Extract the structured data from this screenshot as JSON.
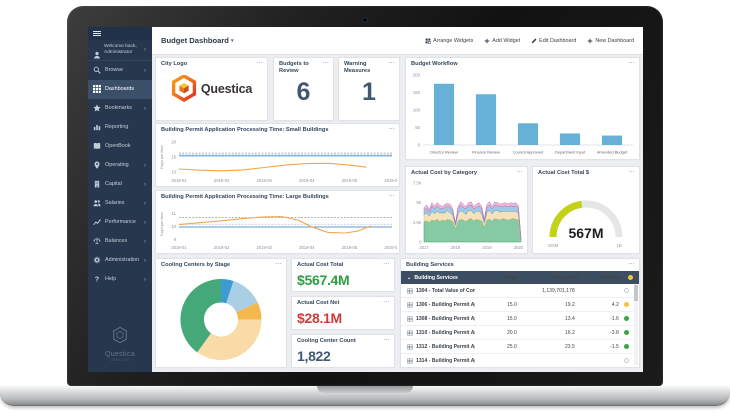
{
  "app": {
    "title": "Budget Dashboard",
    "actions": [
      {
        "label": "Arrange Widgets",
        "icon": "arrange-icon"
      },
      {
        "label": "Add Widget",
        "icon": "plus-icon"
      },
      {
        "label": "Edit Dashboard",
        "icon": "pencil-icon"
      },
      {
        "label": "New Dashboard",
        "icon": "plus-icon"
      }
    ]
  },
  "sidebar": {
    "welcome_line1": "Welcome back,",
    "welcome_line2": "Administrator",
    "items": [
      {
        "id": "browse",
        "label": "Browse",
        "icon": "search-icon",
        "chevron": true,
        "selected": false
      },
      {
        "id": "dashboards",
        "label": "Dashboards",
        "icon": "grid-icon",
        "chevron": false,
        "selected": true
      },
      {
        "id": "bookmarks",
        "label": "Bookmarks",
        "icon": "star-icon",
        "chevron": true,
        "selected": false
      },
      {
        "id": "reporting",
        "label": "Reporting",
        "icon": "report-icon",
        "chevron": false,
        "selected": false
      },
      {
        "id": "openbook",
        "label": "OpenBook",
        "icon": "book-icon",
        "chevron": false,
        "selected": false
      },
      {
        "id": "operating",
        "label": "Operating",
        "icon": "pin-icon",
        "chevron": true,
        "selected": false
      },
      {
        "id": "capital",
        "label": "Capital",
        "icon": "building-icon",
        "chevron": true,
        "selected": false
      },
      {
        "id": "salaries",
        "label": "Salaries",
        "icon": "people-icon",
        "chevron": true,
        "selected": false
      },
      {
        "id": "performance",
        "label": "Performance",
        "icon": "performance-icon",
        "chevron": true,
        "selected": false
      },
      {
        "id": "balances",
        "label": "Balances",
        "icon": "scale-icon",
        "chevron": true,
        "selected": false
      },
      {
        "id": "administration",
        "label": "Administration",
        "icon": "gear-icon",
        "chevron": true,
        "selected": false
      },
      {
        "id": "help",
        "label": "Help",
        "icon": "help-icon",
        "chevron": true,
        "selected": false
      }
    ],
    "brand": "Questica",
    "version": "2019.1.0.0"
  },
  "panels": {
    "city_logo": {
      "title": "City Logo",
      "logo_text": "Questica"
    },
    "budgets_to_review": {
      "title": "Budgets to Review",
      "value": "6"
    },
    "warning_measures": {
      "title": "Warning Measures",
      "value": "1"
    },
    "budget_workflow": {
      "title": "Budget Workflow"
    },
    "small_buildings": {
      "title": "Building Permit Application Processing Time: Small Buildings"
    },
    "large_buildings": {
      "title": "Building Permit Application Processing Time: Large Buildings"
    },
    "cost_by_category": {
      "title": "Actual Cost by Category"
    },
    "cost_total_gauge": {
      "title": "Actual Cost Total $"
    },
    "cooling_by_stage": {
      "title": "Cooling Centers by Stage"
    },
    "actual_cost_total": {
      "title": "Actual Cost Total",
      "value": "$567.4M",
      "color": "#2f9e44"
    },
    "actual_cost_net": {
      "title": "Actual Cost Net",
      "value": "$28.1M",
      "color": "#d23a3a"
    },
    "cooling_center_count": {
      "title": "Cooling Center Count",
      "value": "1,822",
      "color": "#3f5870"
    },
    "building_services": {
      "title": "Building Services"
    }
  },
  "table": {
    "group_label": "Building Services",
    "columns": [
      "Target",
      "Projected",
      "Variance"
    ],
    "header_status": "yellow",
    "rows": [
      {
        "label": "1304 - Total Value of Constr...",
        "target": "",
        "projected": "1,139,701,178",
        "variance": "",
        "status": "none"
      },
      {
        "label": "1306 - Building Permit Appli...",
        "target": "15.0",
        "projected": "19.2",
        "variance": "4.2",
        "status": "yellow"
      },
      {
        "label": "1308 - Building Permit Appli...",
        "target": "15.0",
        "projected": "13.4",
        "variance": "-1.6",
        "status": "green"
      },
      {
        "label": "1310 - Building Permit Appli...",
        "target": "20.0",
        "projected": "16.2",
        "variance": "-3.8",
        "status": "green"
      },
      {
        "label": "1312 - Building Permit Appli...",
        "target": "25.0",
        "projected": "23.5",
        "variance": "-1.5",
        "status": "green"
      },
      {
        "label": "1314 - Building Permit Appli...",
        "target": "",
        "projected": "",
        "variance": "",
        "status": "none"
      }
    ],
    "status_colors": {
      "yellow": "#f2c53d",
      "green": "#38a544",
      "none": "#ffffff"
    }
  },
  "ui": {
    "menu_glyph": "⋯",
    "caret_down": "▾",
    "chevron_right": "›",
    "collapse_glyph": "⌄"
  },
  "chart_data": [
    {
      "id": "budget-workflow",
      "type": "bar",
      "title": "Budget Workflow",
      "categories": [
        "Director Review",
        "Finance Review",
        "Council Approved",
        "Department Input",
        "Amended Budget"
      ],
      "values": [
        175,
        145,
        62,
        33,
        27
      ],
      "ylim": [
        0,
        200
      ],
      "yticks": [
        0,
        50,
        100,
        150,
        200
      ],
      "bar_color": "#67b1d8",
      "grid": false,
      "legend": "none"
    },
    {
      "id": "small-buildings",
      "type": "line",
      "title": "Building Permit Application Processing Time: Small Buildings",
      "ylabel": "Days per Item",
      "xdomain": [
        0,
        5
      ],
      "xticks": [
        "2019-01",
        "2019-02",
        "2019-03",
        "2019-04",
        "2019-05",
        "2019-06"
      ],
      "ylim": [
        9,
        21
      ],
      "yticks": [
        10,
        15,
        20
      ],
      "series": [
        {
          "style": "dashed",
          "color": "#8d9298",
          "points": [
            [
              0,
              16.3
            ],
            [
              5,
              16.3
            ]
          ]
        },
        {
          "style": "dashed",
          "color": "#b9cfe4",
          "points": [
            [
              0,
              15.8
            ],
            [
              5,
              15.8
            ]
          ]
        },
        {
          "style": "solid",
          "color": "#5b9bd5",
          "points": [
            [
              0,
              15.4
            ],
            [
              5,
              15.4
            ]
          ]
        },
        {
          "style": "solid",
          "color": "#f5a54a",
          "points": [
            [
              0,
              11.0
            ],
            [
              0.5,
              10.6
            ],
            [
              1,
              10.4
            ],
            [
              1.5,
              10.7
            ],
            [
              2,
              11.5
            ],
            [
              2.5,
              12.3
            ],
            [
              3,
              12.8
            ],
            [
              3.5,
              12.9
            ],
            [
              4,
              12.3
            ],
            [
              4.4,
              11.6
            ]
          ]
        }
      ]
    },
    {
      "id": "large-buildings",
      "type": "line",
      "title": "Building Permit Application Processing Time: Large Buildings",
      "ylabel": "Days per Item",
      "xdomain": [
        0,
        5
      ],
      "xticks": [
        "2019-01",
        "2019-02",
        "2019-03",
        "2019-04",
        "2019-05",
        "2019-06"
      ],
      "ylim": [
        8.8,
        11.6
      ],
      "yticks": [
        9,
        10,
        11
      ],
      "series": [
        {
          "style": "dashed",
          "color": "#8d9298",
          "points": [
            [
              0,
              10.7
            ],
            [
              5,
              10.7
            ]
          ]
        },
        {
          "style": "dashed",
          "color": "#b9cfe4",
          "points": [
            [
              0,
              10.18
            ],
            [
              5,
              10.18
            ]
          ]
        },
        {
          "style": "solid",
          "color": "#5b9bd5",
          "points": [
            [
              0,
              9.97
            ],
            [
              5,
              9.97
            ]
          ]
        },
        {
          "style": "solid",
          "color": "#f5a54a",
          "points": [
            [
              0,
              10.15
            ],
            [
              0.5,
              10.3
            ],
            [
              1,
              10.45
            ],
            [
              1.5,
              10.62
            ],
            [
              2,
              10.75
            ],
            [
              2.4,
              10.78
            ],
            [
              2.8,
              10.5
            ],
            [
              3.1,
              10.0
            ],
            [
              3.5,
              9.55
            ],
            [
              3.9,
              9.5
            ],
            [
              4.2,
              9.65
            ],
            [
              4.5,
              10.05
            ]
          ]
        }
      ]
    },
    {
      "id": "cost-by-category",
      "type": "area",
      "title": "Actual Cost by Category",
      "xticks": [
        "2017",
        "2018",
        "2019",
        "2020"
      ],
      "xtick_pos": [
        0,
        12,
        24,
        36
      ],
      "ylim": [
        0,
        7.5
      ],
      "yticks": [
        {
          "v": 0,
          "label": "0"
        },
        {
          "v": 2.5,
          "label": "2.5K"
        },
        {
          "v": 5,
          "label": "5K"
        },
        {
          "v": 7.5,
          "label": "7.5K"
        }
      ],
      "series": [
        {
          "color": "#79c49a",
          "line": "#3f9e6e",
          "values": [
            2.6,
            2.7,
            2.5,
            2.8,
            2.7,
            2.9,
            2.6,
            2.8,
            2.7,
            2.9,
            2.8,
            2.6,
            1.7,
            2.7,
            2.9,
            2.8,
            2.6,
            2.9,
            3.0,
            2.7,
            2.9,
            2.8,
            2.7,
            1.9,
            2.8,
            2.9,
            2.7,
            3.0,
            2.9,
            2.8,
            3.0,
            2.9,
            2.8,
            2.9,
            3.0,
            2.9,
            2.8,
            0.2
          ]
        },
        {
          "color": "#f4dfb3",
          "line": "#d9b978",
          "values": [
            0.9,
            1.0,
            0.8,
            1.1,
            0.9,
            1.0,
            1.1,
            0.9,
            1.0,
            1.1,
            0.9,
            0.8,
            0.4,
            0.9,
            1.1,
            1.0,
            0.9,
            1.1,
            1.0,
            0.9,
            1.0,
            1.1,
            0.9,
            0.5,
            1.0,
            1.1,
            0.9,
            1.0,
            1.1,
            1.0,
            0.9,
            1.0,
            1.1,
            1.0,
            0.9,
            1.0,
            0.9,
            0.1
          ]
        },
        {
          "color": "#93c3e4",
          "line": "#5b9bd5",
          "values": [
            0.5,
            0.6,
            0.5,
            0.7,
            0.6,
            0.7,
            0.6,
            0.5,
            0.7,
            0.6,
            0.7,
            0.5,
            0.2,
            0.6,
            0.7,
            0.6,
            0.7,
            0.6,
            0.7,
            0.6,
            0.5,
            0.7,
            0.6,
            0.3,
            0.6,
            0.7,
            0.6,
            0.7,
            0.6,
            0.7,
            0.6,
            0.7,
            0.6,
            0.7,
            0.6,
            0.7,
            0.6,
            0.1
          ]
        },
        {
          "color": "#ecb3d3",
          "line": "#cc6faa",
          "values": [
            0.3,
            0.4,
            0.3,
            0.4,
            0.3,
            0.4,
            0.4,
            0.3,
            0.4,
            0.3,
            0.4,
            0.3,
            0.1,
            0.3,
            0.4,
            0.4,
            0.3,
            0.4,
            0.4,
            0.3,
            0.4,
            0.4,
            0.3,
            0.2,
            0.4,
            0.4,
            0.3,
            0.4,
            0.4,
            0.3,
            0.4,
            0.4,
            0.3,
            0.4,
            0.4,
            0.4,
            0.3,
            0.05
          ]
        }
      ]
    },
    {
      "id": "cost-total-gauge",
      "type": "gauge",
      "title": "Actual Cost Total $",
      "value": 567,
      "min": 200,
      "max": 1000,
      "value_label": "567M",
      "min_label": "200M",
      "max_label": "1B",
      "arc_color": "#c3d117",
      "track_color": "#e4e6e8"
    },
    {
      "id": "cooling-donut",
      "type": "donut",
      "title": "Cooling Centers by Stage",
      "slices": [
        {
          "color": "#3d9bd1",
          "value": 5
        },
        {
          "color": "#aacfe4",
          "value": 13
        },
        {
          "color": "#f3b94f",
          "value": 7
        },
        {
          "color": "#f8dba6",
          "value": 35
        },
        {
          "color": "#44a878",
          "value": 40
        }
      ]
    }
  ]
}
